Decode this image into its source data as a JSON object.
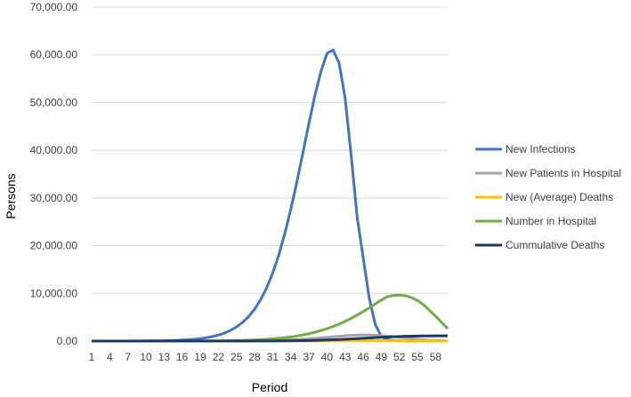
{
  "chart_data": {
    "type": "line",
    "xlabel": "Period",
    "ylabel": "Persons",
    "ylim": [
      0,
      70000
    ],
    "ytick_labels": [
      "0.00",
      "10,000.00",
      "20,000.00",
      "30,000.00",
      "40,000.00",
      "50,000.00",
      "60,000.00",
      "70,000.00"
    ],
    "xtick_labels": [
      "1",
      "4",
      "7",
      "10",
      "13",
      "16",
      "19",
      "22",
      "25",
      "28",
      "31",
      "34",
      "37",
      "40",
      "43",
      "46",
      "49",
      "52",
      "55",
      "58"
    ],
    "grid": "horizontal",
    "legend_position": "right",
    "x": [
      1,
      2,
      3,
      4,
      5,
      6,
      7,
      8,
      9,
      10,
      11,
      12,
      13,
      14,
      15,
      16,
      17,
      18,
      19,
      20,
      21,
      22,
      23,
      24,
      25,
      26,
      27,
      28,
      29,
      30,
      31,
      32,
      33,
      34,
      35,
      36,
      37,
      38,
      39,
      40,
      41,
      42,
      43,
      44,
      45,
      46,
      47,
      48,
      49,
      50,
      51,
      52,
      53,
      54,
      55,
      56,
      57,
      58,
      59,
      60
    ],
    "series": [
      {
        "name": "New Infections",
        "color": "#4472c4",
        "values": [
          0,
          0,
          1,
          2,
          4,
          6,
          9,
          13,
          19,
          27,
          38,
          54,
          75,
          105,
          146,
          200,
          275,
          375,
          510,
          690,
          930,
          1250,
          1670,
          2230,
          2960,
          3900,
          5120,
          6680,
          8660,
          11150,
          14250,
          18000,
          22500,
          27600,
          33300,
          39400,
          45600,
          51500,
          56500,
          60300,
          61000,
          58300,
          51000,
          39000,
          26000,
          17500,
          9000,
          3500,
          1000,
          300,
          100,
          40,
          15,
          5,
          2,
          1,
          0,
          0,
          0,
          0
        ]
      },
      {
        "name": "New Patients in Hospital",
        "color": "#a5a5a5",
        "values": [
          0,
          0,
          0,
          0,
          0,
          0,
          0,
          0,
          0,
          0,
          0,
          0,
          0,
          1,
          1,
          2,
          2,
          3,
          4,
          6,
          8,
          11,
          14,
          19,
          25,
          33,
          44,
          57,
          74,
          96,
          124,
          160,
          205,
          260,
          325,
          400,
          485,
          580,
          680,
          790,
          900,
          1000,
          1100,
          1180,
          1240,
          1270,
          1260,
          1220,
          1150,
          1050,
          930,
          790,
          640,
          500,
          370,
          260,
          175,
          115,
          75,
          50
        ]
      },
      {
        "name": "New (Average) Deaths",
        "color": "#ffc000",
        "values": [
          0,
          0,
          0,
          0,
          0,
          0,
          0,
          0,
          0,
          0,
          0,
          0,
          0,
          0,
          0,
          0,
          0,
          0,
          0,
          0,
          0,
          0,
          1,
          1,
          1,
          2,
          2,
          3,
          4,
          5,
          6,
          8,
          10,
          13,
          16,
          20,
          24,
          29,
          34,
          40,
          46,
          52,
          58,
          63,
          67,
          70,
          71,
          70,
          67,
          62,
          55,
          48,
          40,
          32,
          25,
          19,
          14,
          10,
          7,
          5
        ]
      },
      {
        "name": "Number in Hospital",
        "color": "#70ad47",
        "values": [
          0,
          0,
          0,
          0,
          0,
          0,
          0,
          0,
          0,
          1,
          1,
          2,
          3,
          4,
          6,
          8,
          11,
          15,
          20,
          27,
          36,
          48,
          63,
          83,
          108,
          140,
          180,
          230,
          292,
          368,
          462,
          575,
          710,
          870,
          1060,
          1280,
          1540,
          1840,
          2190,
          2590,
          3040,
          3550,
          4120,
          4750,
          5440,
          6180,
          6960,
          7770,
          8580,
          9300,
          9560,
          9640,
          9500,
          9100,
          8500,
          7600,
          6400,
          5200,
          3900,
          2600
        ]
      },
      {
        "name": "Cummulative Deaths",
        "color": "#203864",
        "values": [
          0,
          0,
          0,
          0,
          0,
          0,
          0,
          0,
          0,
          0,
          0,
          0,
          0,
          0,
          0,
          0,
          0,
          0,
          0,
          0,
          1,
          2,
          3,
          4,
          6,
          8,
          10,
          13,
          17,
          22,
          29,
          37,
          47,
          60,
          76,
          96,
          120,
          149,
          183,
          223,
          269,
          321,
          379,
          442,
          509,
          579,
          650,
          720,
          787,
          849,
          904,
          952,
          992,
          1024,
          1049,
          1068,
          1082,
          1092,
          1099,
          1104
        ]
      }
    ]
  }
}
